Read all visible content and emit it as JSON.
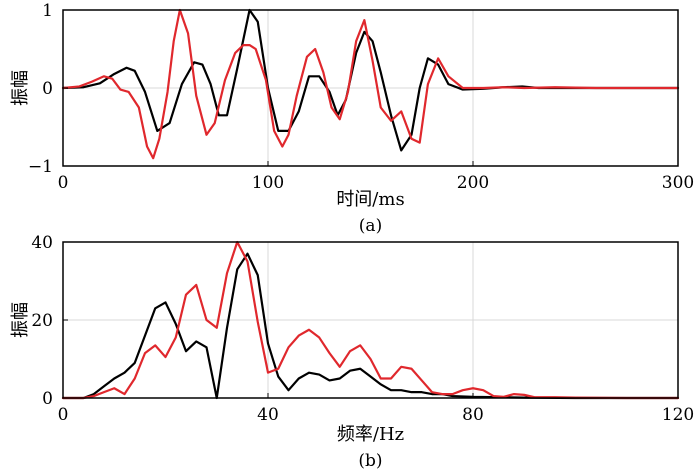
{
  "chart_data": [
    {
      "type": "line",
      "caption": "(a)",
      "xlabel": "时间/ms",
      "ylabel": "振幅",
      "xlim": [
        0,
        300
      ],
      "ylim": [
        -1,
        1
      ],
      "xticks": [
        0,
        100,
        200,
        300
      ],
      "yticks": [
        -1,
        0,
        1
      ],
      "grid": true,
      "series": [
        {
          "color": "#000000",
          "x": [
            0,
            10,
            18,
            25,
            31,
            35,
            40,
            46,
            52,
            58,
            64,
            68,
            72,
            76,
            80,
            85,
            91,
            95,
            100,
            105,
            110,
            115,
            120,
            125,
            130,
            134,
            138,
            143,
            147,
            151,
            155,
            160,
            165,
            170,
            174,
            178,
            183,
            188,
            195,
            205,
            215,
            224,
            232,
            245,
            260,
            280,
            300
          ],
          "y": [
            0,
            0.01,
            0.06,
            0.18,
            0.26,
            0.22,
            -0.05,
            -0.55,
            -0.45,
            0.05,
            0.33,
            0.3,
            0.05,
            -0.35,
            -0.35,
            0.25,
            1.0,
            0.85,
            0.0,
            -0.55,
            -0.55,
            -0.3,
            0.15,
            0.15,
            -0.05,
            -0.35,
            -0.15,
            0.45,
            0.72,
            0.6,
            0.2,
            -0.35,
            -0.8,
            -0.6,
            0.0,
            0.38,
            0.3,
            0.05,
            -0.02,
            -0.01,
            0.01,
            0.02,
            0.0,
            0.0,
            0.0,
            0.0,
            0.0
          ]
        },
        {
          "color": "#e0282d",
          "x": [
            0,
            8,
            14,
            20,
            24,
            28,
            32,
            37,
            41,
            44,
            47,
            51,
            54,
            57,
            61,
            65,
            70,
            74,
            79,
            84,
            88,
            91,
            94,
            99,
            103,
            107,
            110,
            114,
            119,
            123,
            127,
            131,
            135,
            139,
            143,
            147,
            151,
            155,
            160,
            165,
            170,
            174,
            178,
            183,
            188,
            195,
            205,
            215,
            225,
            240,
            260,
            280,
            300
          ],
          "y": [
            0,
            0.02,
            0.08,
            0.15,
            0.12,
            -0.02,
            -0.05,
            -0.25,
            -0.75,
            -0.9,
            -0.65,
            -0.05,
            0.6,
            1.0,
            0.7,
            -0.1,
            -0.6,
            -0.45,
            0.1,
            0.45,
            0.55,
            0.55,
            0.5,
            0.1,
            -0.55,
            -0.75,
            -0.6,
            -0.1,
            0.4,
            0.5,
            0.2,
            -0.25,
            -0.4,
            -0.05,
            0.6,
            0.87,
            0.35,
            -0.25,
            -0.42,
            -0.3,
            -0.65,
            -0.7,
            0.05,
            0.38,
            0.15,
            0.0,
            0.0,
            0.01,
            0.0,
            0.01,
            0.0,
            0.0,
            0.0
          ]
        }
      ]
    },
    {
      "type": "line",
      "caption": "(b)",
      "xlabel": "频率/Hz",
      "ylabel": "振幅",
      "xlim": [
        0,
        120
      ],
      "ylim": [
        0,
        40
      ],
      "xticks": [
        0,
        40,
        80,
        120
      ],
      "yticks": [
        0,
        20,
        40
      ],
      "grid": true,
      "series": [
        {
          "color": "#000000",
          "x": [
            0,
            4,
            6,
            8,
            10,
            12,
            14,
            16,
            18,
            20,
            22,
            24,
            26,
            28,
            30,
            32,
            34,
            36,
            38,
            40,
            42,
            44,
            46,
            48,
            50,
            52,
            54,
            56,
            58,
            60,
            62,
            64,
            66,
            68,
            70,
            72,
            74,
            76,
            80,
            90,
            100,
            120
          ],
          "y": [
            0,
            0,
            1,
            3,
            5,
            6.5,
            9,
            16,
            23,
            24.5,
            19,
            12,
            14.5,
            13,
            0,
            18,
            33,
            37,
            31.5,
            14,
            5.5,
            2,
            5,
            6.5,
            6,
            4.5,
            5,
            7,
            7.5,
            5.5,
            3.5,
            2,
            2,
            1.5,
            1.5,
            1,
            1,
            0.5,
            0.3,
            0.1,
            0,
            0
          ]
        },
        {
          "color": "#e0282d",
          "x": [
            0,
            4,
            6,
            8,
            10,
            12,
            14,
            16,
            18,
            20,
            22,
            24,
            26,
            28,
            30,
            32,
            34,
            36,
            38,
            40,
            42,
            44,
            46,
            48,
            50,
            52,
            54,
            56,
            58,
            60,
            62,
            64,
            66,
            68,
            70,
            72,
            74,
            76,
            78,
            80,
            82,
            84,
            86,
            88,
            90,
            92,
            96,
            100,
            110,
            120
          ],
          "y": [
            0,
            0,
            0.5,
            1.5,
            2.5,
            1,
            5,
            11.5,
            13.5,
            10.5,
            15.5,
            26.5,
            29,
            20,
            18,
            32,
            40,
            35,
            19.5,
            6.5,
            7.5,
            13,
            16,
            17.5,
            15.5,
            11.5,
            8,
            12,
            13.5,
            10,
            5,
            5,
            8,
            7.5,
            4.5,
            1.5,
            1,
            1,
            2,
            2.5,
            2,
            0.5,
            0.3,
            1,
            0.8,
            0.2,
            0.2,
            0.1,
            0,
            0
          ]
        }
      ]
    }
  ]
}
